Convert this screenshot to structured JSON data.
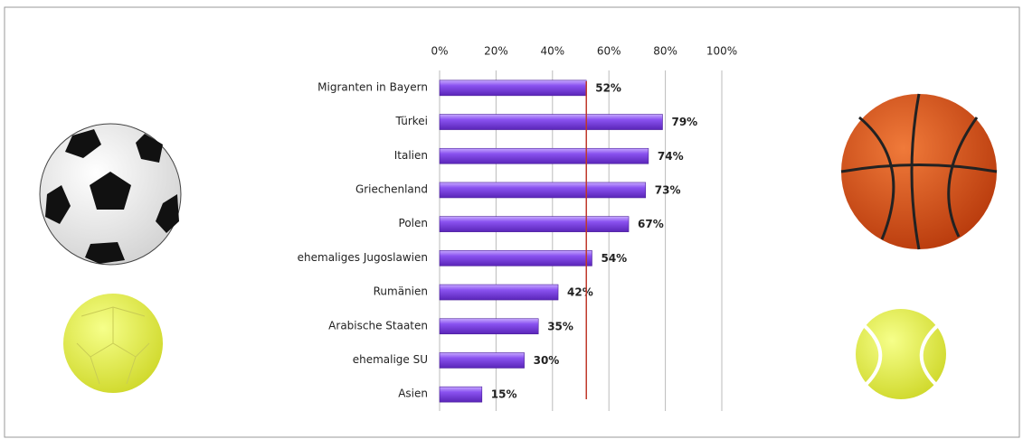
{
  "chart_data": {
    "type": "bar",
    "orientation": "horizontal",
    "categories": [
      "Migranten in Bayern",
      "Türkei",
      "Italien",
      "Griechenland",
      "Polen",
      "ehemaliges Jugoslawien",
      "Rumänien",
      "Arabische Staaten",
      "ehemalige SU",
      "Asien"
    ],
    "values": [
      52,
      79,
      74,
      73,
      67,
      54,
      42,
      35,
      30,
      15
    ],
    "value_labels": [
      "52%",
      "79%",
      "74%",
      "73%",
      "67%",
      "54%",
      "42%",
      "35%",
      "30%",
      "15%"
    ],
    "color": "#7d45e6",
    "xlim": [
      0,
      100
    ],
    "xticks": [
      {
        "value": 0,
        "label": "0%"
      },
      {
        "value": 20,
        "label": "20%"
      },
      {
        "value": 40,
        "label": "40%"
      },
      {
        "value": 60,
        "label": "60%"
      },
      {
        "value": 80,
        "label": "80%"
      },
      {
        "value": 100,
        "label": "100%"
      }
    ],
    "grid": true,
    "reference_line": {
      "value": 52,
      "color": "#c0392b"
    }
  }
}
